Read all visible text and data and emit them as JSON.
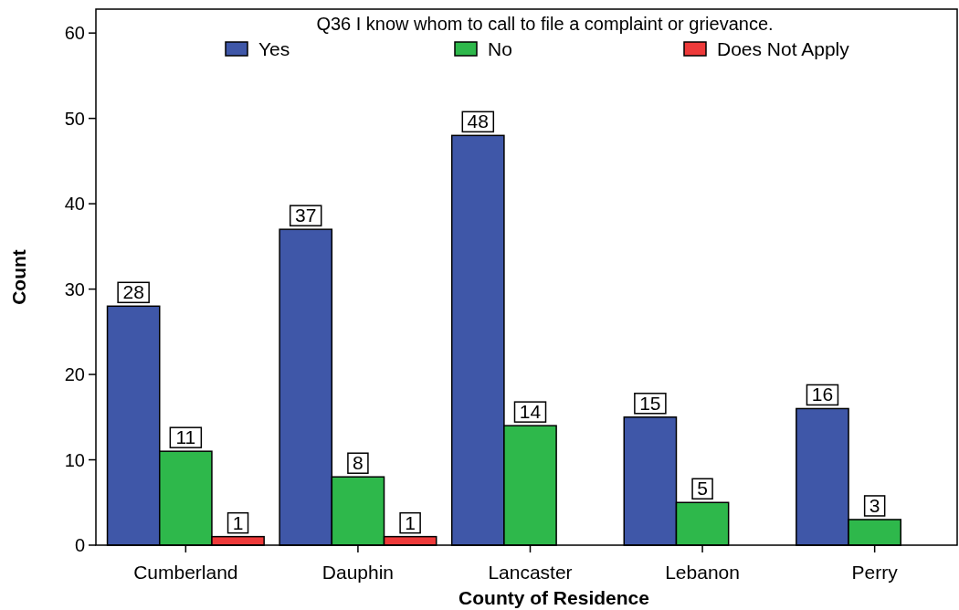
{
  "chart_data": {
    "type": "bar",
    "title": "Q36 I know whom to call to file a complaint or grievance.",
    "xlabel": "County of Residence",
    "ylabel": "Count",
    "categories": [
      "Cumberland",
      "Dauphin",
      "Lancaster",
      "Lebanon",
      "Perry"
    ],
    "series": [
      {
        "name": "Yes",
        "color": "#3f57a8",
        "values": [
          28,
          37,
          48,
          15,
          16
        ]
      },
      {
        "name": "No",
        "color": "#2eb84b",
        "values": [
          11,
          8,
          14,
          5,
          3
        ]
      },
      {
        "name": "Does Not Apply",
        "color": "#ee3a3a",
        "values": [
          1,
          1,
          null,
          null,
          null
        ]
      }
    ],
    "ylim": [
      0,
      62.8
    ],
    "yticks": [
      0,
      10,
      20,
      30,
      40,
      50,
      60
    ],
    "data_labels": true,
    "legend": "top",
    "grid": false
  }
}
